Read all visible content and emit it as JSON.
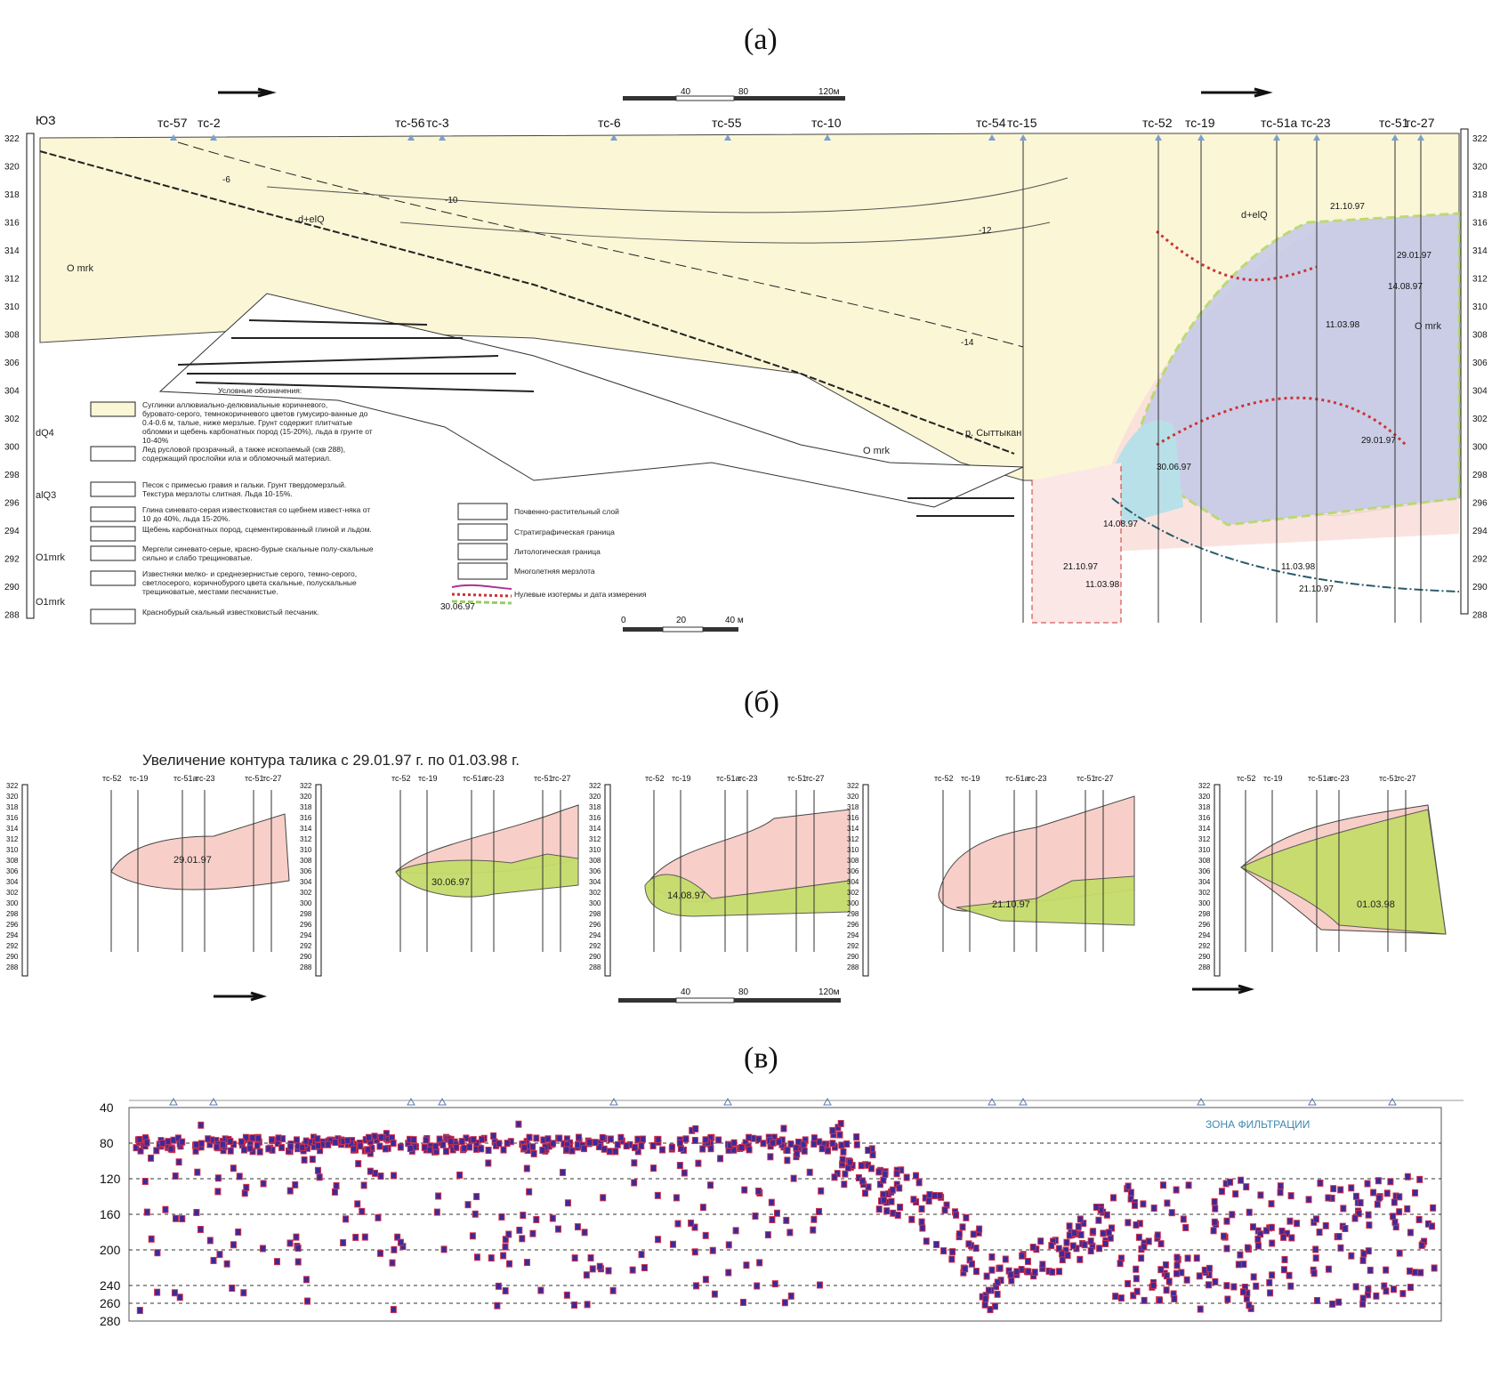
{
  "panels": {
    "a": "(а)",
    "b": "(б)",
    "v": "(в)"
  },
  "section_a": {
    "corner": "ЮЗ",
    "stations": [
      "тс-57",
      "тс-2",
      "тс-56",
      "тс-3",
      "тс-6",
      "тс-55",
      "тс-10",
      "тс-54",
      "тс-15",
      "тс-52",
      "тс-19",
      "тс-51а",
      "тс-23",
      "тс-51",
      "тс-27"
    ],
    "elevations": [
      "322",
      "320",
      "318",
      "316",
      "314",
      "312",
      "310",
      "308",
      "306",
      "304",
      "302",
      "300",
      "298",
      "296",
      "294",
      "292",
      "290",
      "288"
    ],
    "scale_top": [
      "40",
      "80",
      "120м"
    ],
    "scale_bottom": [
      "0",
      "20",
      "40 м"
    ],
    "units": [
      "O mrk",
      "d+elQ",
      "O mrk",
      "O mrk",
      "d+elQ",
      "р. Сыттыкан"
    ],
    "dates": [
      "21.10.97",
      "14.08.97",
      "11.03.98",
      "29.01.97",
      "30.06.97",
      "14.08.97",
      "21.10.97",
      "11.03.98",
      "11.03.98",
      "21.10.97",
      "29.01.97"
    ],
    "isotherms": [
      "-6",
      "-10",
      "-12",
      "-14"
    ],
    "legend_title": "Условные обозначения:",
    "legend_ages": [
      "dQ4",
      "alQ3",
      "O1mrk",
      "O1mrk"
    ],
    "legend_items": [
      "Суглинки аллювиально-делювиальные коричневого, буровато-серого, темнокоричневого цветов гумусиро-ванные до 0.4-0.6 м, талые, ниже мерзлые. Грунт содержит плитчатые обломки и щебень карбонатных пород (15-20%), льда в грунте от 10-40%",
      "Лед русловой прозрачный, а также ископаемый (скв 288), содержащий прослойки ила и обломочный материал.",
      "Песок с примесью гравия и гальки. Грунт твердомерзлый. Текстура мерзлоты слитная. Льда 10-15%.",
      "Глина синевато-серая известковистая со щебнем извест-няка от 10 до 40%, льда 15-20%.",
      "Щебень карбонатных пород, сцементированный глиной и льдом.",
      "Мергели синевато-серые, красно-бурые скальные полу-скальные сильно и слабо трещиноватые.",
      "Известняки мелко- и среднезернистые серого, темно-серого, светлосерого, коричнобурого цвета скальные, полускальные трещиноватые, местами песчанистые.",
      "Краснобурый скальный известковистый песчаник."
    ],
    "legend2": [
      "Почвенно-растительный слой",
      "Стратиграфическая граница",
      "Литологическая граница",
      "Многолетняя мерзлота",
      "Нулевые изотермы и дата измерения"
    ],
    "legend2_date": "30.06.97"
  },
  "section_b": {
    "title": "Увеличение контура талика с 29.01.97 г. по 01.03.98 г.",
    "stations": [
      "тс-52",
      "тс-19",
      "тс-51а",
      "тс-23",
      "тс-51",
      "тс-27"
    ],
    "dates": [
      "29.01.97",
      "30.06.97",
      "14.08.97",
      "21.10.97",
      "01.03.98"
    ],
    "scale": [
      "40",
      "80",
      "120м"
    ]
  },
  "section_v": {
    "y_ticks": [
      "40",
      "80",
      "120",
      "160",
      "200",
      "240",
      "260",
      "280"
    ],
    "annotation": "ЗОНА ФИЛЬТРАЦИИ",
    "colors": {
      "point": "#3a2a9a",
      "edge": "#d0304a"
    }
  }
}
